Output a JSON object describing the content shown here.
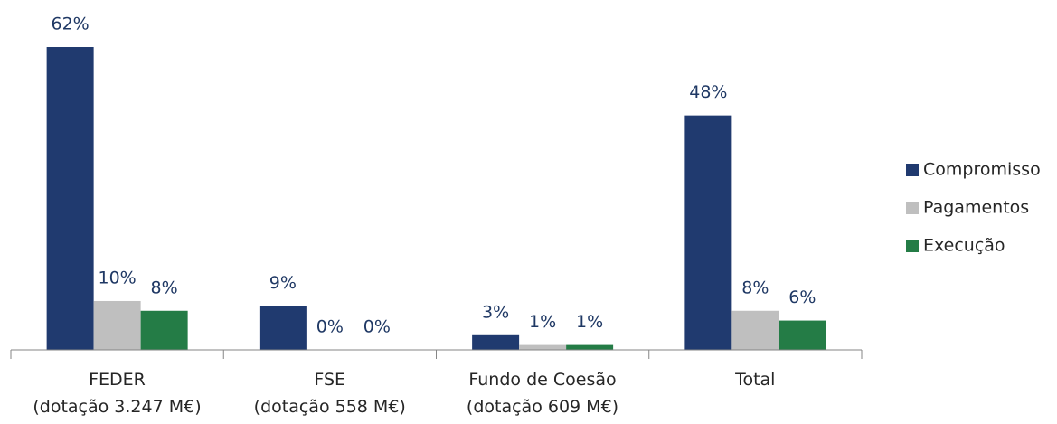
{
  "chart_data": {
    "type": "bar",
    "categories": [
      "FEDER\n(dotação 3.247 M€)",
      "FSE\n(dotação 558 M€)",
      "Fundo de Coesão\n(dotação 609 M€)",
      "Total"
    ],
    "series": [
      {
        "name": "Compromisso",
        "color": "#203a6f",
        "values": [
          62,
          9,
          3,
          48
        ],
        "value_labels": [
          "62%",
          "9%",
          "3%",
          "48%"
        ]
      },
      {
        "name": "Pagamentos",
        "color": "#bfbfbf",
        "values": [
          10,
          0,
          1,
          8
        ],
        "value_labels": [
          "10%",
          "0%",
          "1%",
          "8%"
        ]
      },
      {
        "name": "Execução",
        "color": "#247c46",
        "values": [
          8,
          0,
          1,
          6
        ],
        "value_labels": [
          "8%",
          "0%",
          "1%",
          "6%"
        ]
      }
    ],
    "legend": "right"
  }
}
